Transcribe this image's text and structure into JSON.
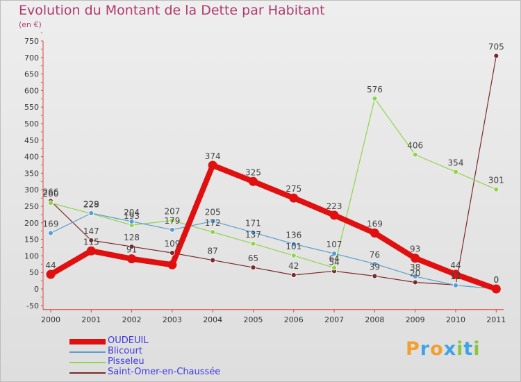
{
  "header": {
    "title": "Evolution du Montant de la Dette par Habitant",
    "subtitle": "(en €)"
  },
  "logo": {
    "letters": [
      {
        "ch": "P",
        "color": "#f0a030"
      },
      {
        "ch": "r",
        "color": "#3ea4e6"
      },
      {
        "ch": "o",
        "color": "#f0a030"
      },
      {
        "ch": "x",
        "color": "#3ea4e6"
      },
      {
        "ch": "i",
        "color": "#8cc63f"
      },
      {
        "ch": "t",
        "color": "#3ea4e6"
      },
      {
        "ch": "i",
        "color": "#8cc63f"
      }
    ]
  },
  "chart_data": {
    "type": "line",
    "title": "Evolution du Montant de la Dette par Habitant",
    "subtitle": "(en €)",
    "x": [
      "2000",
      "2001",
      "2002",
      "2003",
      "2004",
      "2005",
      "2006",
      "2007",
      "2008",
      "2009",
      "2010",
      "2011"
    ],
    "ylim": [
      -50,
      750
    ],
    "yticks": [
      -50,
      0,
      50,
      100,
      150,
      200,
      250,
      300,
      350,
      400,
      450,
      500,
      550,
      600,
      650,
      700,
      750
    ],
    "grid": false,
    "legend_position": "bottom-left",
    "series": [
      {
        "name": "OUDEUIL",
        "color": "#e01010",
        "values": [
          44,
          115,
          91,
          73,
          374,
          325,
          275,
          223,
          169,
          93,
          44,
          0
        ],
        "labels": [
          "44",
          "115",
          "91",
          "",
          "374",
          "325",
          "275",
          "223",
          "169",
          "93",
          "44",
          "0"
        ]
      },
      {
        "name": "Blicourt",
        "color": "#5a9ed0",
        "values": [
          169,
          229,
          204,
          179,
          205,
          171,
          136,
          107,
          76,
          38,
          11,
          0
        ],
        "labels": [
          "169",
          "229",
          "204",
          "179",
          "205",
          "171",
          "136",
          "107",
          "76",
          "38",
          "11",
          "0"
        ]
      },
      {
        "name": "Pisseleu",
        "color": "#8fd44a",
        "values": [
          260,
          228,
          193,
          207,
          172,
          137,
          101,
          64,
          576,
          406,
          354,
          301
        ],
        "labels": [
          "260",
          "228",
          "193",
          "207",
          "172",
          "137",
          "101",
          "64",
          "576",
          "406",
          "354",
          "301"
        ]
      },
      {
        "name": "Saint-Omer-en-Chaussée",
        "color": "#7a2a2a",
        "values": [
          266,
          147,
          128,
          109,
          87,
          65,
          42,
          54,
          39,
          20,
          12,
          705
        ],
        "labels": [
          "266",
          "147",
          "128",
          "109",
          "87",
          "65",
          "42",
          "54",
          "39",
          "20",
          "12",
          "705"
        ]
      }
    ]
  }
}
